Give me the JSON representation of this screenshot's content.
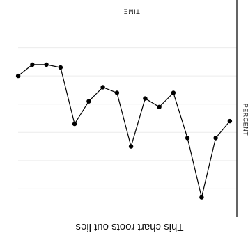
{
  "chart_data": {
    "type": "line",
    "title": "This chart roots out lies",
    "xlabel": "TIME",
    "ylabel": "PERCENT",
    "orientation": "rotated-180",
    "x": [
      1,
      2,
      3,
      4,
      5,
      6,
      7,
      8,
      9,
      10,
      11,
      12,
      13,
      14,
      15,
      16
    ],
    "values": [
      36,
      42,
      63,
      42,
      26,
      31,
      28,
      45,
      26,
      24,
      29,
      37,
      17,
      16,
      16,
      20
    ],
    "ylim": [
      0,
      70
    ],
    "xlim": [
      0.5,
      16.5
    ],
    "grid": true,
    "legend": "none",
    "colors": {
      "line": "#000000",
      "marker": "#000000",
      "axis": "#222222",
      "grid": "#ececec"
    }
  }
}
